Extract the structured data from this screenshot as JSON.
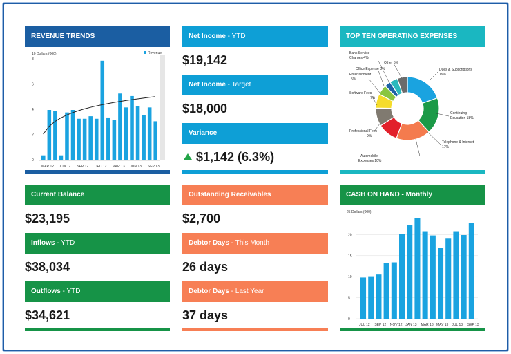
{
  "revenue": {
    "title": "REVENUE TRENDS",
    "chart_data": {
      "type": "bar",
      "ylabel": "10 Dollars (000)",
      "legend": "Revenue",
      "legend_position": "top-right",
      "ylim": [
        0,
        8
      ],
      "yticks": [
        "0",
        "2",
        "4",
        "6",
        "8"
      ],
      "xticks": [
        "MAR 12",
        "JUN 12",
        "SEP 12",
        "DEC 12",
        "MAR 13",
        "JUN 13",
        "SEP 13"
      ],
      "values": [
        0.4,
        4.0,
        3.9,
        0.4,
        3.8,
        4.0,
        3.3,
        3.3,
        3.5,
        3.3,
        7.9,
        3.4,
        3.2,
        5.3,
        4.2,
        5.1,
        4.3,
        3.6,
        4.2,
        3.1
      ],
      "trend": "log trend line",
      "grid": false
    }
  },
  "net_income_ytd": {
    "label": "Net Income",
    "sub": " - YTD",
    "value": "$19,142"
  },
  "net_income_target": {
    "label": "Net Income",
    "sub": " - Target",
    "value": "$18,000"
  },
  "variance": {
    "label": "Variance",
    "value": "$1,142 (6.3%)",
    "arrow": "up-arrow-icon",
    "arrow_color": "#22a447"
  },
  "expenses": {
    "title": "TOP TEN OPERATING EXPENSES",
    "chart_data": {
      "type": "pie",
      "donut": true,
      "slices": [
        {
          "label": "Dues & Subscriptions",
          "value": 19,
          "color": "#1aa3e0"
        },
        {
          "label": "Continuing Education",
          "value": 18,
          "color": "#1c9a48"
        },
        {
          "label": "Telephone & Internet",
          "value": 17,
          "color": "#f47b4e"
        },
        {
          "label": "Automobile Expenses",
          "value": 10,
          "color": "#e2202b"
        },
        {
          "label": "Professional Fees",
          "value": 9,
          "color": "#807a70"
        },
        {
          "label": "Software Fees",
          "value": 7,
          "color": "#f5dc2b"
        },
        {
          "label": "Entertainment",
          "value": 5,
          "color": "#8ac640"
        },
        {
          "label": "Office Expense",
          "value": 3,
          "color": "#1d62a6"
        },
        {
          "label": "Bank Service Charges",
          "value": 4,
          "color": "#2ab9bd"
        },
        {
          "label": "Other",
          "value": 5,
          "color": "#6b6b6b"
        }
      ],
      "labels_text": [
        "Dues & Subscriptions",
        "19%",
        "Continuing",
        "Education 18%",
        "Telephone & Internet",
        "17%",
        "Automobile",
        "Expenses 10%",
        "Professional Fees",
        "9%",
        "Software Fees",
        "7%",
        "Entertainment",
        "5%",
        "Office Expense 3%",
        "Bank Service",
        "Charges 4%",
        "Other 5%"
      ]
    }
  },
  "current_balance": {
    "label": "Current Balance",
    "value": "$23,195"
  },
  "inflows": {
    "label": "Inflows",
    "sub": " - YTD",
    "value": "$38,034"
  },
  "outflows": {
    "label": "Outflows",
    "sub": " - YTD",
    "value": "$34,621"
  },
  "receivables": {
    "label": "Outstanding Receivables",
    "value": "$2,700"
  },
  "debtor_month": {
    "label": "Debtor Days",
    "sub": " - This Month",
    "value": "26 days"
  },
  "debtor_year": {
    "label": "Debtor Days",
    "sub": " - Last Year",
    "value": "37 days"
  },
  "cash": {
    "title": "CASH ON HAND",
    "title_sub": " - Monthly",
    "chart_data": {
      "type": "bar",
      "ylabel": "25 Dollars (000)",
      "ylim": [
        0,
        25
      ],
      "yticks": [
        "0",
        "5",
        "10",
        "15",
        "20"
      ],
      "xticks": [
        "JUL 12",
        "SEP 12",
        "NOV 12",
        "JAN 13",
        "MAR 13",
        "MAY 13",
        "JUL 13",
        "SEP 13"
      ],
      "values": [
        9.8,
        10.1,
        10.5,
        13.2,
        13.4,
        20.1,
        22.2,
        24.0,
        20.8,
        19.8,
        16.8,
        19.2,
        20.8,
        19.9,
        22.8
      ],
      "grid": true
    }
  }
}
